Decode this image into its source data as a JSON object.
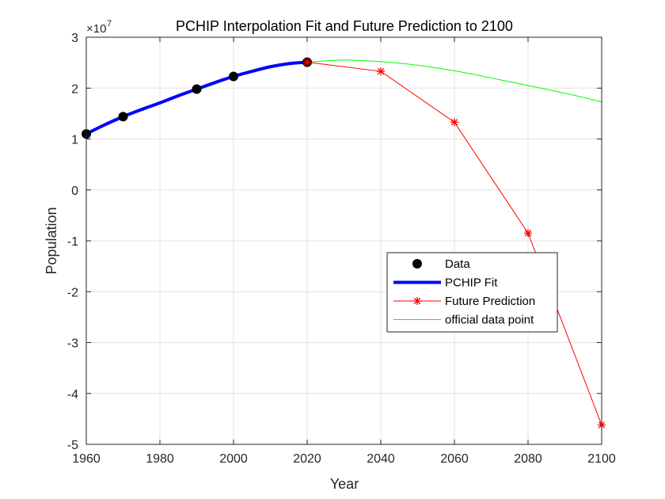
{
  "chart_data": {
    "type": "line",
    "title": "PCHIP Interpolation Fit and Future Prediction to 2100",
    "xlabel": "Year",
    "ylabel": "Population",
    "y_exponent_label": "×10",
    "y_exponent_power": "7",
    "xlim": [
      1960,
      2100
    ],
    "ylim": [
      -5,
      3
    ],
    "y_scale_factor": 10000000,
    "xticks": [
      1960,
      1980,
      2000,
      2020,
      2040,
      2060,
      2080,
      2100
    ],
    "yticks": [
      3,
      2,
      1,
      0,
      -1,
      -2,
      -3,
      -4,
      -5
    ],
    "grid": true,
    "legend_placement": "lower-right",
    "series": [
      {
        "name": "Data",
        "kind": "markers",
        "color": "#000000",
        "x": [
          1960,
          1970,
          1990,
          2000,
          2020
        ],
        "y": [
          1.1,
          1.44,
          1.98,
          2.23,
          2.51
        ]
      },
      {
        "name": "PCHIP Fit",
        "kind": "line",
        "color": "#0000ff",
        "x": [
          1960,
          1965,
          1970,
          1975,
          1980,
          1985,
          1990,
          1995,
          2000,
          2005,
          2010,
          2015,
          2020
        ],
        "y": [
          1.1,
          1.28,
          1.44,
          1.58,
          1.71,
          1.85,
          1.98,
          2.11,
          2.23,
          2.33,
          2.42,
          2.48,
          2.51
        ]
      },
      {
        "name": "Future Prediction",
        "kind": "line-markers",
        "color": "#ff0000",
        "x": [
          2020,
          2040,
          2060,
          2080,
          2100
        ],
        "y": [
          2.51,
          2.33,
          1.33,
          -0.85,
          -4.62
        ]
      },
      {
        "name": "official data point",
        "kind": "line",
        "color": "#00ff00",
        "x": [
          2020,
          2030,
          2040,
          2050,
          2060,
          2070,
          2080,
          2090,
          2100
        ],
        "y": [
          2.51,
          2.55,
          2.52,
          2.45,
          2.34,
          2.2,
          2.05,
          1.9,
          1.73
        ]
      }
    ]
  }
}
